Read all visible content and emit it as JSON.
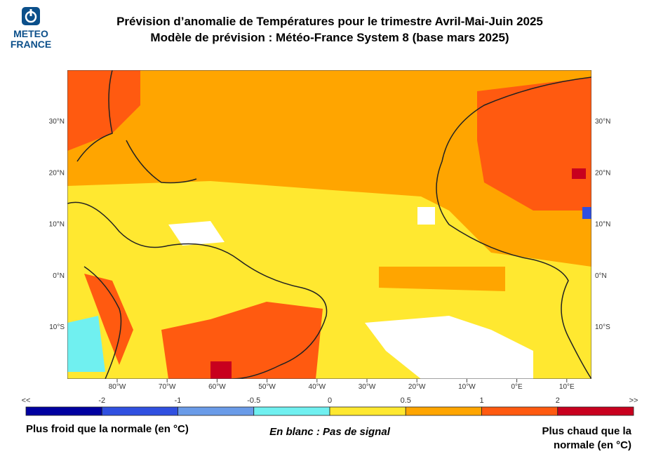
{
  "logo": {
    "line1": "METEO",
    "line2": "FRANCE"
  },
  "header": {
    "title": "Prévision d’anomalie de Températures pour le trimestre Avril-Mai-Juin 2025",
    "subtitle": "Modèle de prévision : Météo-France System 8 (base mars 2025)"
  },
  "map": {
    "lon_ticks": [
      "80°W",
      "70°W",
      "60°W",
      "50°W",
      "40°W",
      "30°W",
      "20°W",
      "10°W",
      "0°E",
      "10°E"
    ],
    "lat_ticks": [
      "30°N",
      "20°N",
      "10°N",
      "0°N",
      "10°S"
    ]
  },
  "legend": {
    "labels": [
      "<<",
      "-2",
      "-1",
      "-0.5",
      "0",
      "0.5",
      "1",
      "2",
      ">>"
    ],
    "colors": [
      "#0000a0",
      "#3050e0",
      "#6a9be8",
      "#70f0f0",
      "#ffe830",
      "#ffa500",
      "#ff5a10",
      "#c8001e"
    ]
  },
  "footer": {
    "left": "Plus froid que la normale (en °C)",
    "center": "En blanc : Pas de signal",
    "right": "Plus chaud que la normale (en °C)"
  }
}
